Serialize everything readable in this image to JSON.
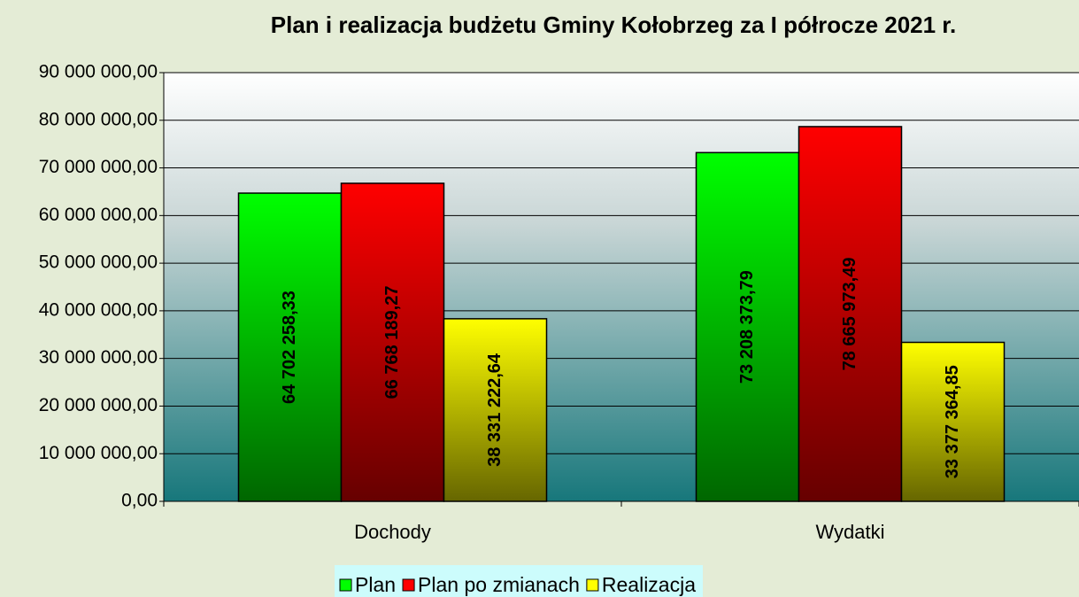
{
  "chart_data": {
    "type": "bar",
    "title": "Plan i realizacja budżetu Gminy Kołobrzeg za I półrocze 2021 r.",
    "categories": [
      "Dochody",
      "Wydatki"
    ],
    "series": [
      {
        "name": "Plan",
        "color": "#00ff00",
        "values": [
          64702258.33,
          73208373.79
        ],
        "value_labels": [
          "64 702 258,33",
          "73 208 373,79"
        ]
      },
      {
        "name": "Plan po zmianach",
        "color": "#ff0000",
        "values": [
          66768189.27,
          78665973.49
        ],
        "value_labels": [
          "66 768 189,27",
          "78 665 973,49"
        ]
      },
      {
        "name": "Realizacja",
        "color": "#ffff00",
        "values": [
          38331222.64,
          33377364.85
        ],
        "value_labels": [
          "38 331 222,64",
          "33 377 364,85"
        ]
      }
    ],
    "ylim": [
      0,
      90000000
    ],
    "yticks": [
      {
        "value": 0,
        "label": "0,00"
      },
      {
        "value": 10000000,
        "label": "10 000 000,00"
      },
      {
        "value": 20000000,
        "label": "20 000 000,00"
      },
      {
        "value": 30000000,
        "label": "30 000 000,00"
      },
      {
        "value": 40000000,
        "label": "40 000 000,00"
      },
      {
        "value": 50000000,
        "label": "50 000 000,00"
      },
      {
        "value": 60000000,
        "label": "60 000 000,00"
      },
      {
        "value": 70000000,
        "label": "70 000 000,00"
      },
      {
        "value": 80000000,
        "label": "80 000 000,00"
      },
      {
        "value": 90000000,
        "label": "90 000 000,00"
      }
    ],
    "grid": true,
    "legend": "bottom"
  }
}
